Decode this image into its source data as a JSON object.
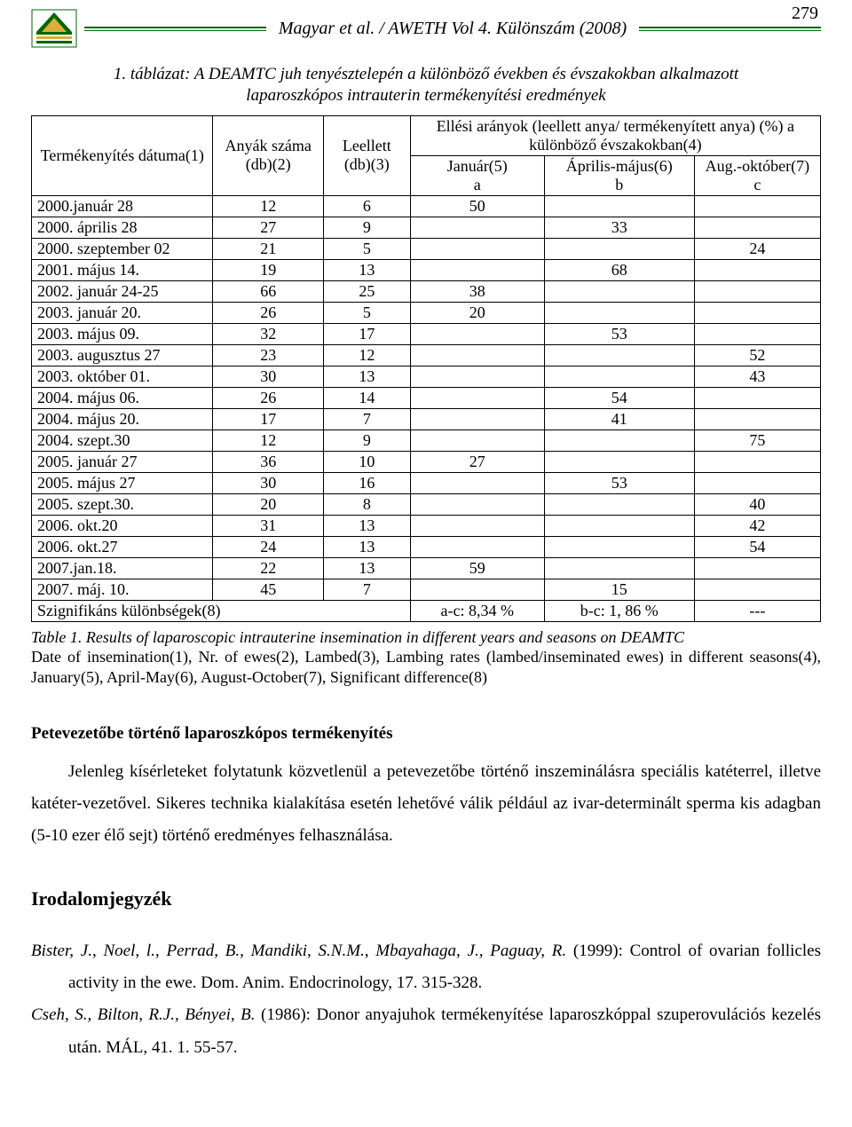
{
  "header": {
    "title": "Magyar et al. / AWETH Vol 4. Különszám (2008)",
    "page_number": "279"
  },
  "table": {
    "caption": "1. táblázat: A DEAMTC juh tenyésztelepén a különböző években és évszakokban alkalmazott laparoszkópos intrauterin termékenyítési eredmények",
    "col_headers": {
      "c1": "Termékenyítés dátuma(1)",
      "c2": "Anyák száma (db)(2)",
      "c3": "Leellett (db)(3)",
      "c4_top": "Ellési arányok (leellett anya/ termékenyített anya) (%) a különböző évszakokban(4)",
      "c4a": "Január(5)",
      "c4a_sub": "a",
      "c4b": "Április-május(6)",
      "c4b_sub": "b",
      "c4c": "Aug.-október(7)",
      "c4c_sub": "c"
    },
    "rows": [
      {
        "d": "2000.január 28",
        "n": "12",
        "l": "6",
        "a": "50",
        "b": "",
        "c": ""
      },
      {
        "d": "2000. április 28",
        "n": "27",
        "l": "9",
        "a": "",
        "b": "33",
        "c": ""
      },
      {
        "d": "2000. szeptember 02",
        "n": "21",
        "l": "5",
        "a": "",
        "b": "",
        "c": "24"
      },
      {
        "d": "2001. május 14.",
        "n": "19",
        "l": "13",
        "a": "",
        "b": "68",
        "c": ""
      },
      {
        "d": "2002. január 24-25",
        "n": "66",
        "l": "25",
        "a": "38",
        "b": "",
        "c": ""
      },
      {
        "d": "2003. január 20.",
        "n": "26",
        "l": "5",
        "a": "20",
        "b": "",
        "c": ""
      },
      {
        "d": "2003. május 09.",
        "n": "32",
        "l": "17",
        "a": "",
        "b": "53",
        "c": ""
      },
      {
        "d": "2003. augusztus 27",
        "n": "23",
        "l": "12",
        "a": "",
        "b": "",
        "c": "52"
      },
      {
        "d": "2003. október 01.",
        "n": "30",
        "l": "13",
        "a": "",
        "b": "",
        "c": "43"
      },
      {
        "d": "2004. május 06.",
        "n": "26",
        "l": "14",
        "a": "",
        "b": "54",
        "c": ""
      },
      {
        "d": "2004. május 20.",
        "n": "17",
        "l": "7",
        "a": "",
        "b": "41",
        "c": ""
      },
      {
        "d": "2004. szept.30",
        "n": "12",
        "l": "9",
        "a": "",
        "b": "",
        "c": "75"
      },
      {
        "d": "2005. január 27",
        "n": "36",
        "l": "10",
        "a": "27",
        "b": "",
        "c": ""
      },
      {
        "d": "2005. május 27",
        "n": "30",
        "l": "16",
        "a": "",
        "b": "53",
        "c": ""
      },
      {
        "d": "2005. szept.30.",
        "n": "20",
        "l": "8",
        "a": "",
        "b": "",
        "c": "40"
      },
      {
        "d": "2006. okt.20",
        "n": "31",
        "l": "13",
        "a": "",
        "b": "",
        "c": "42"
      },
      {
        "d": "2006. okt.27",
        "n": "24",
        "l": "13",
        "a": "",
        "b": "",
        "c": "54"
      },
      {
        "d": "2007.jan.18.",
        "n": "22",
        "l": "13",
        "a": "59",
        "b": "",
        "c": ""
      },
      {
        "d": "2007. máj. 10.",
        "n": "45",
        "l": "7",
        "a": "",
        "b": "15",
        "c": ""
      }
    ],
    "sig_row": {
      "label": "Szignifikáns különbségek(8)",
      "a": "a-c: 8,34 %",
      "b": "b-c: 1, 86 %",
      "c": "---"
    }
  },
  "footnote": {
    "ital": "Table 1. Results of laparoscopic intrauterine insemination in different years and seasons on DEAMTC",
    "rest": "Date of insemination(1), Nr. of ewes(2), Lambed(3), Lambing rates (lambed/inseminated ewes) in different seasons(4), January(5), April-May(6), August-October(7), Significant difference(8)"
  },
  "section1": {
    "title": "Petevezetőbe történő laparoszkópos termékenyítés",
    "para": "Jelenleg kísérleteket folytatunk közvetlenül a petevezetőbe történő inszeminálásra speciális katéterrel, illetve katéter-vezetővel. Sikeres technika kialakítása esetén lehetővé válik például az ivar-determinált sperma kis adagban (5-10 ezer élő sejt) történő eredményes felhasználása."
  },
  "biblio": {
    "title": "Irodalomjegyzék",
    "refs": [
      {
        "authors": "Bister, J., Noel, l., Perrad, B., Mandiki, S.N.M., Mbayahaga, J., Paguay, R.",
        "rest": " (1999): Control of ovarian follicles activity in the ewe. Dom. Anim. Endocrinology, 17. 315-328."
      },
      {
        "authors": "Cseh, S., Bilton, R.J., Bényei, B.",
        "rest": " (1986): Donor anyajuhok termékenyítése laparoszkóppal szuperovulációs kezelés után. MÁL, 41. 1. 55-57."
      }
    ]
  },
  "style": {
    "accent": "#006600",
    "col_widths": [
      "23%",
      "14%",
      "11%",
      "17%",
      "19%",
      "16%"
    ]
  }
}
